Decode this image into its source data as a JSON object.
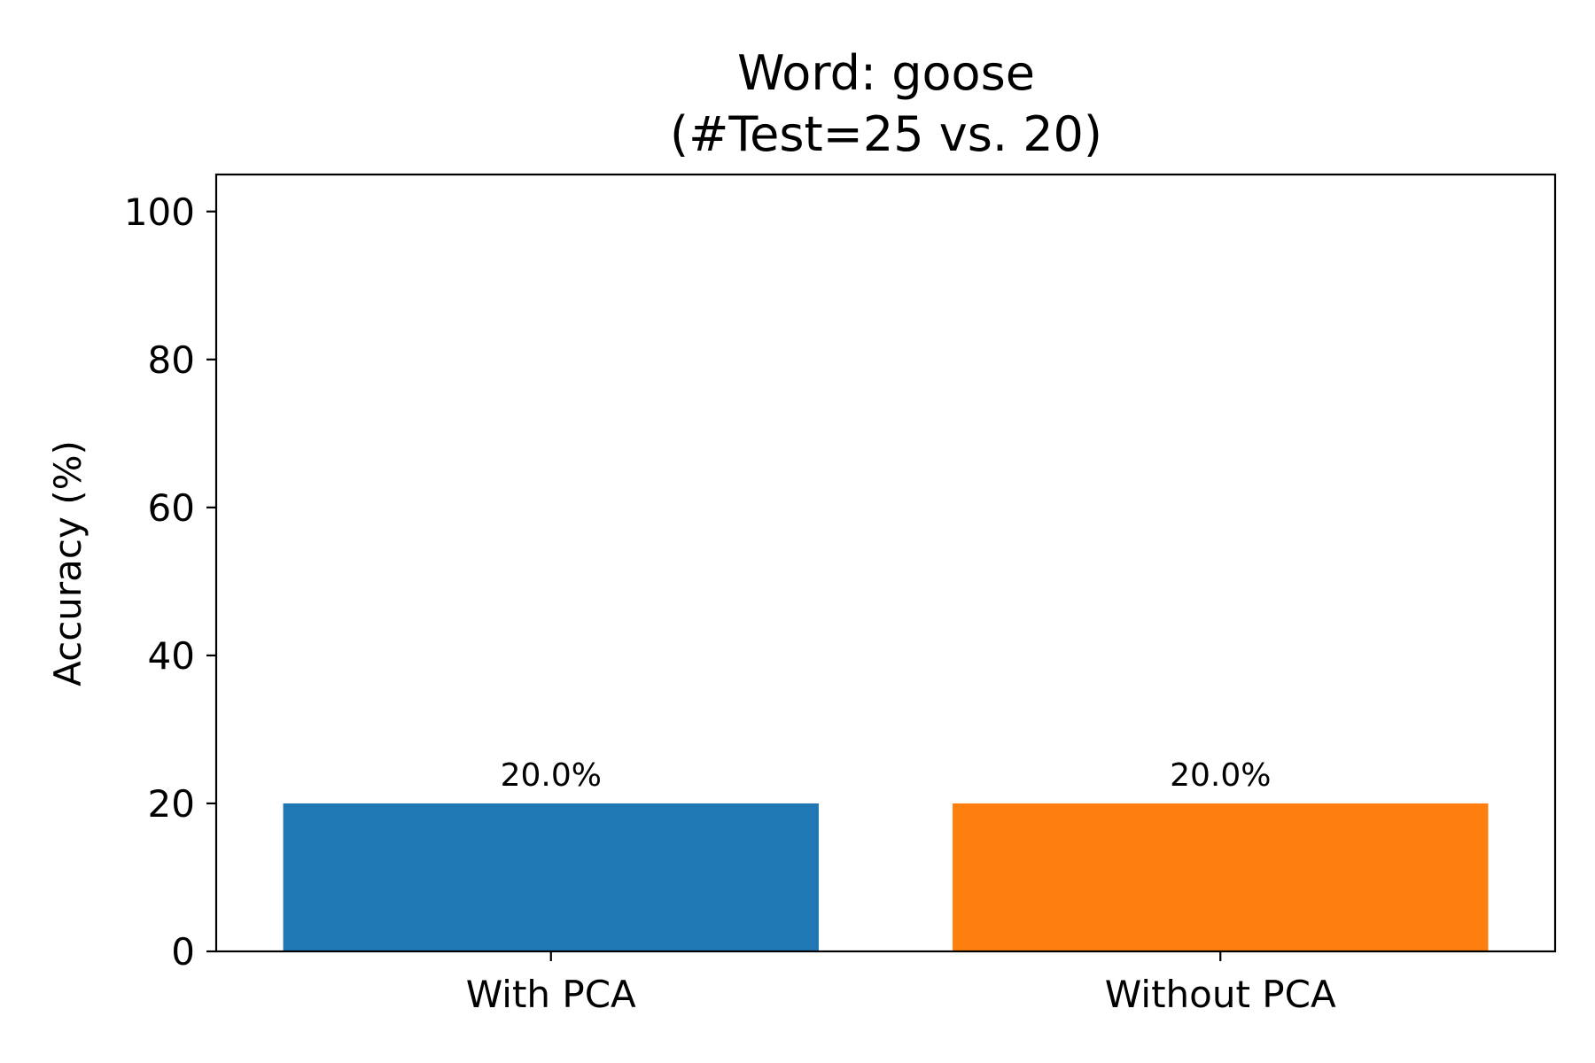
{
  "chart_data": {
    "type": "bar",
    "title_lines": [
      "Word: goose",
      "(#Test=25 vs. 20)"
    ],
    "xlabel": "",
    "ylabel": "Accuracy (%)",
    "ylim": [
      0,
      105
    ],
    "yticks": [
      0,
      20,
      40,
      60,
      80,
      100
    ],
    "categories": [
      "With PCA",
      "Without PCA"
    ],
    "values": [
      20.0,
      20.0
    ],
    "bar_labels": [
      "20.0%",
      "20.0%"
    ],
    "colors": [
      "#1f77b4",
      "#ff7f0e"
    ],
    "grid": false,
    "legend": "none"
  }
}
